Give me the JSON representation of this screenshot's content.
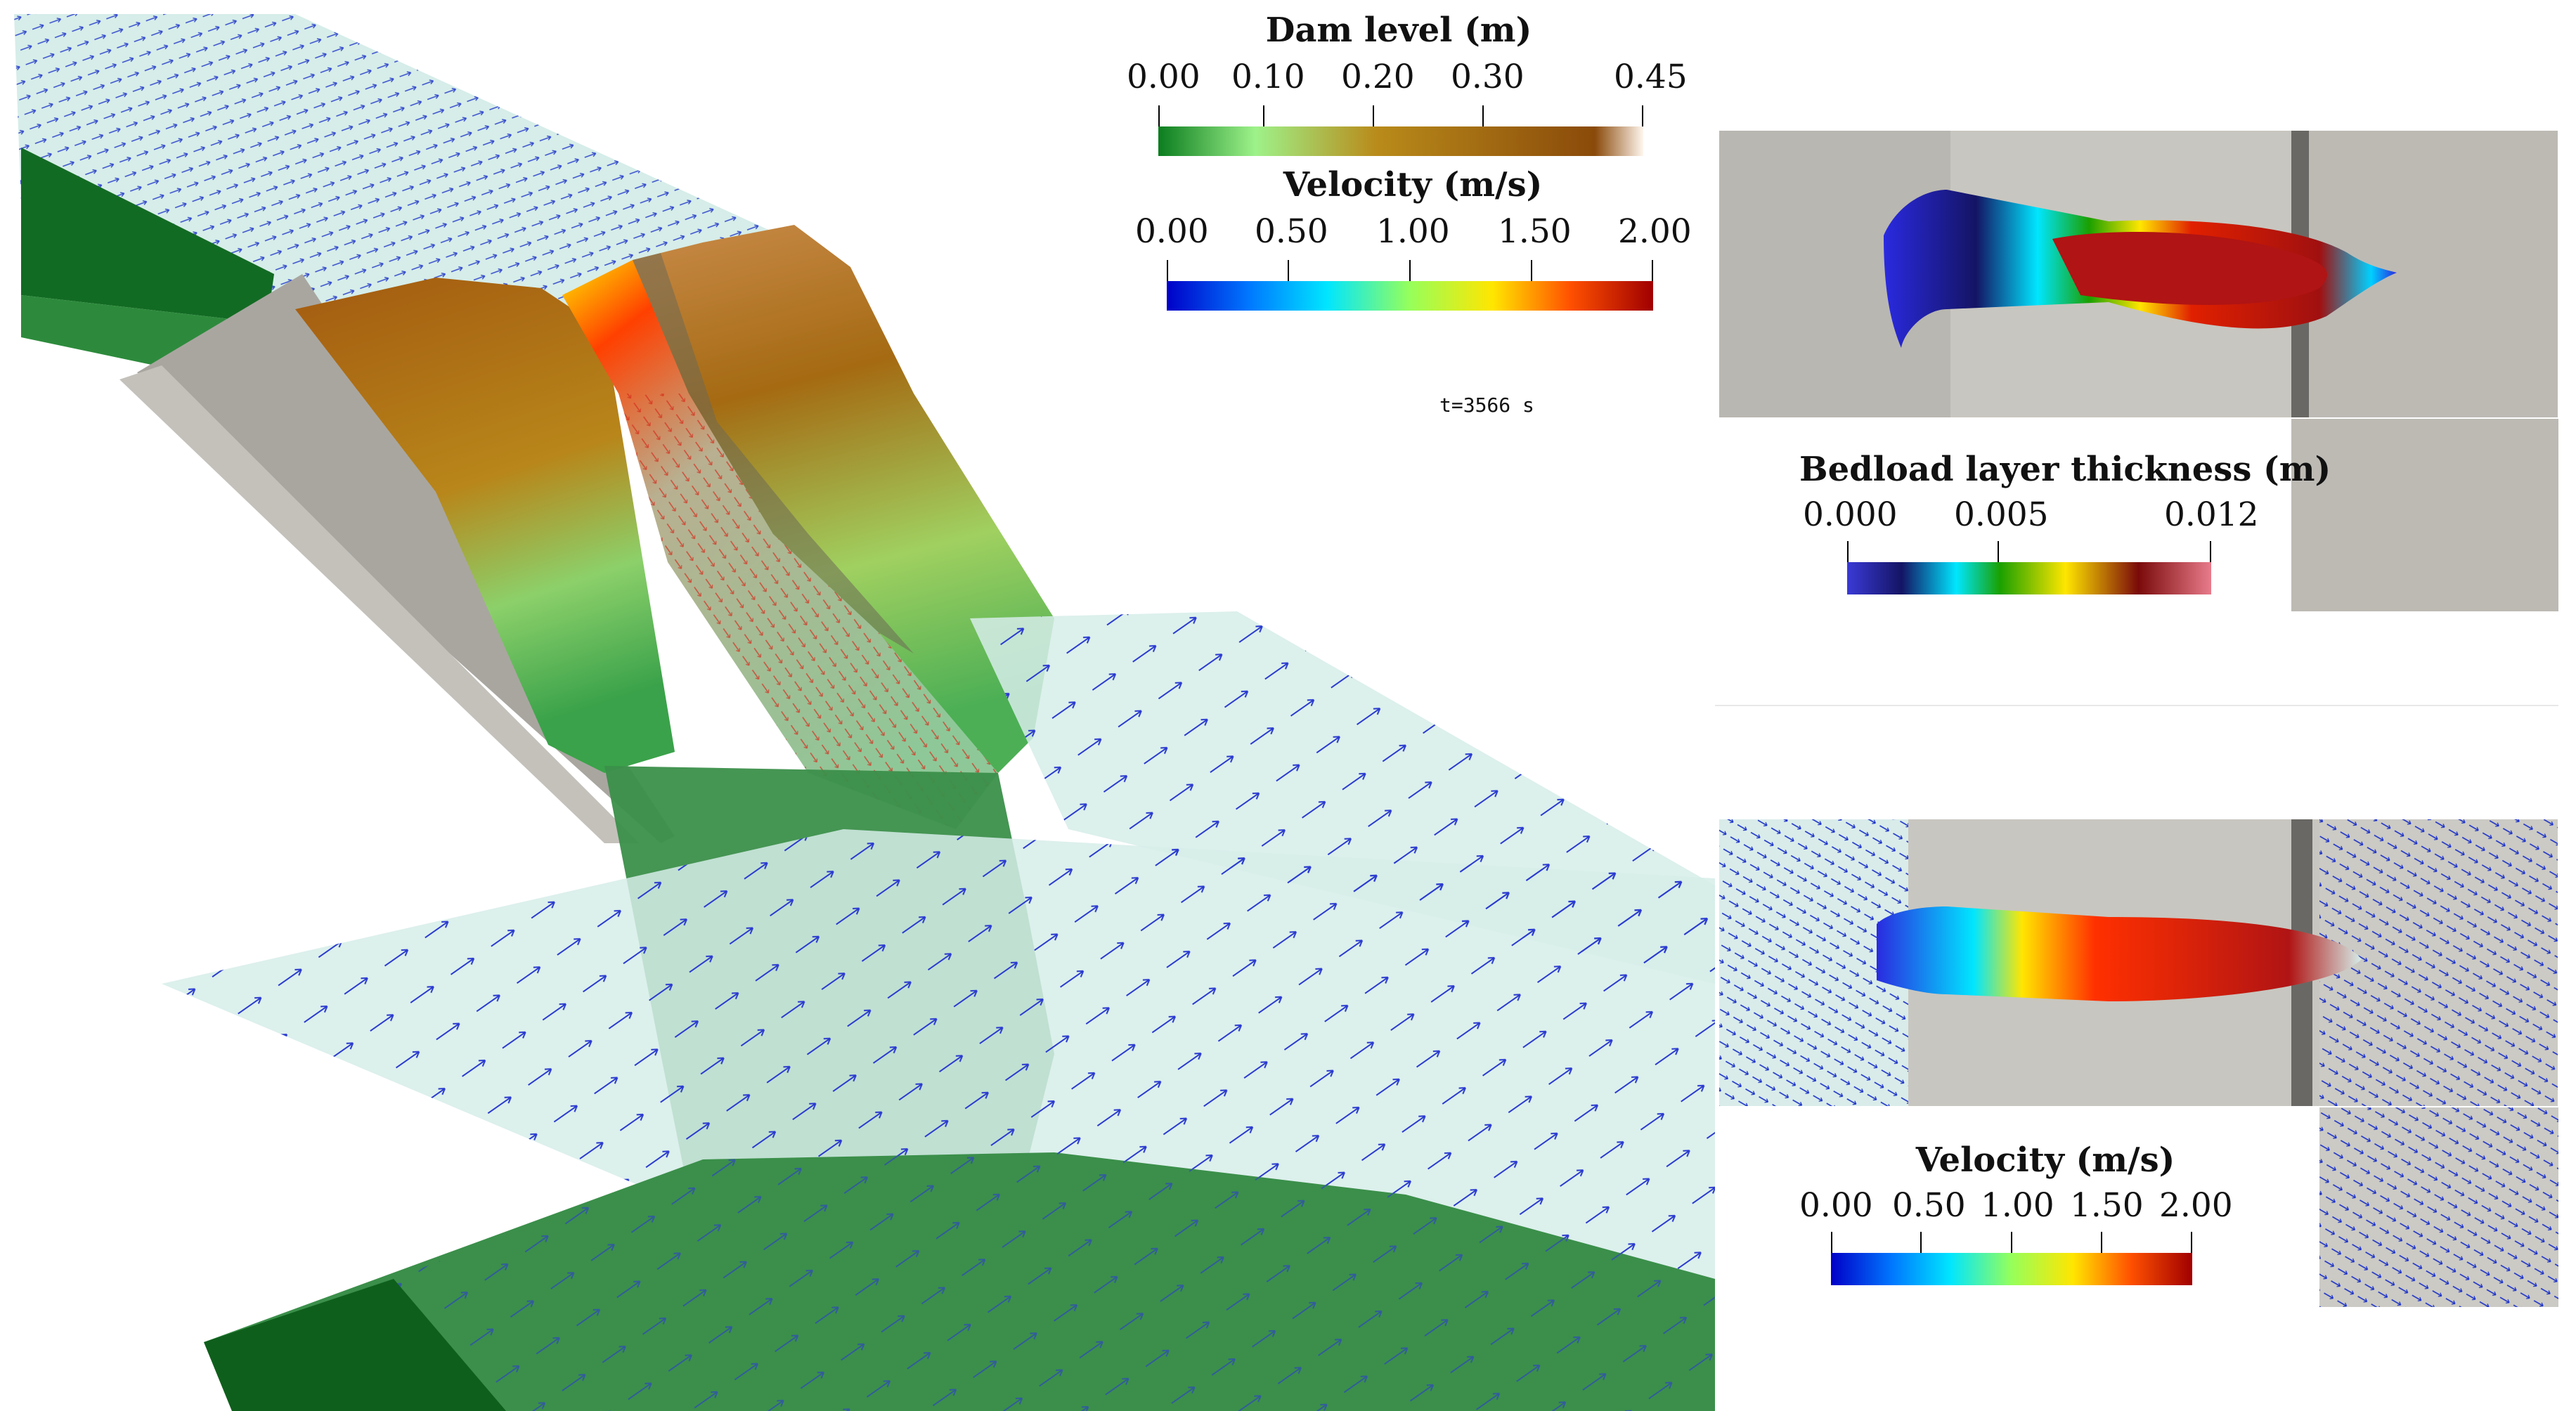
{
  "dam_level_legend": {
    "title": "Dam level (m)",
    "ticks": [
      "0.00",
      "0.10",
      "0.20",
      "0.30",
      "0.45"
    ]
  },
  "velocity_legend_main": {
    "title": "Velocity (m/s)",
    "ticks": [
      "0.00",
      "0.50",
      "1.00",
      "1.50",
      "2.00"
    ]
  },
  "time_label": "t=3566 s",
  "bedload_legend": {
    "title": "Bedload layer thickness (m)",
    "ticks": [
      "0.000",
      "0.005",
      "0.012"
    ]
  },
  "velocity_legend_side": {
    "title": "Velocity (m/s)",
    "ticks": [
      "0.00",
      "0.50",
      "1.00",
      "1.50",
      "2.00"
    ]
  },
  "colors": {
    "jet": [
      "#0000c8",
      "#0078ff",
      "#00e6ff",
      "#96ff5a",
      "#ffe600",
      "#ff5000",
      "#a00000"
    ],
    "dam": [
      "#0b7d1f",
      "#9ef28a",
      "#b98b1a",
      "#8a4a0a",
      "#fff6ee"
    ],
    "bedload": [
      "#3a3ad6",
      "#141464",
      "#00e6ff",
      "#1aa000",
      "#ffe600",
      "#7a0a0a",
      "#e87b8b"
    ],
    "terrain": "#a9a6a0",
    "ground": "#1f7a2f"
  }
}
